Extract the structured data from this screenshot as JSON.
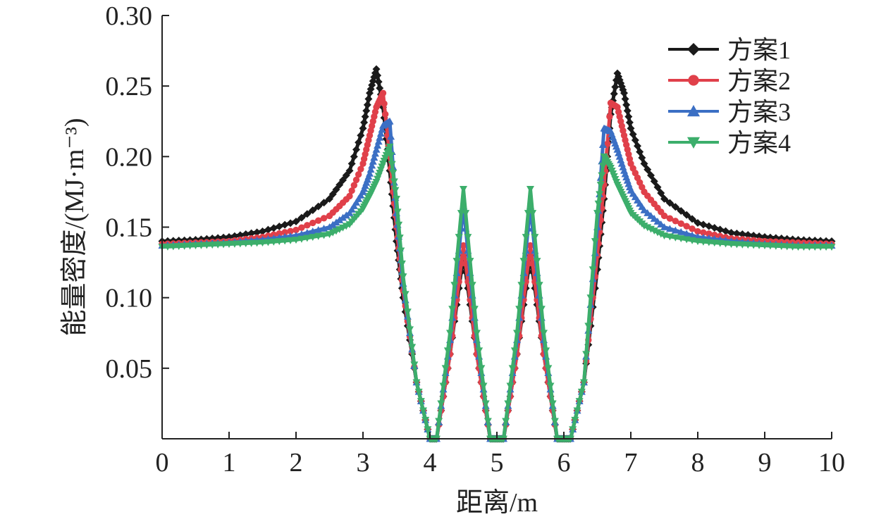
{
  "chart_data": {
    "type": "line",
    "xlabel": "距离/m",
    "ylabel": "能量密度/(MJ·m⁻³)",
    "xlim": [
      0,
      10
    ],
    "ylim": [
      0,
      0.3
    ],
    "x_ticks": [
      "0",
      "1",
      "2",
      "3",
      "4",
      "5",
      "6",
      "7",
      "8",
      "9",
      "10"
    ],
    "y_ticks": [
      "0.05",
      "0.10",
      "0.15",
      "0.20",
      "0.25",
      "0.30"
    ],
    "grid": false,
    "legend_position": "top-right",
    "x": [
      0,
      0.5,
      1.0,
      1.5,
      2.0,
      2.5,
      2.8,
      3.0,
      3.1,
      3.2,
      3.3,
      3.4,
      3.5,
      3.6,
      3.8,
      4.0,
      4.1,
      4.3,
      4.5,
      4.7,
      4.9,
      5.0,
      5.1,
      5.3,
      5.5,
      5.7,
      5.9,
      6.0,
      6.1,
      6.3,
      6.5,
      6.6,
      6.7,
      6.8,
      6.9,
      7.0,
      7.2,
      7.5,
      8.0,
      8.5,
      9.0,
      9.5,
      10.0
    ],
    "series": [
      {
        "name": "方案1",
        "color": "#1a1a1a",
        "marker": "diamond",
        "values": [
          0.14,
          0.141,
          0.143,
          0.147,
          0.154,
          0.17,
          0.19,
          0.22,
          0.245,
          0.262,
          0.235,
          0.19,
          0.14,
          0.1,
          0.04,
          0.0,
          0.0,
          0.06,
          0.13,
          0.06,
          0.0,
          0.0,
          0.0,
          0.06,
          0.13,
          0.06,
          0.0,
          0.0,
          0.0,
          0.04,
          0.12,
          0.17,
          0.23,
          0.259,
          0.245,
          0.22,
          0.195,
          0.17,
          0.153,
          0.146,
          0.143,
          0.141,
          0.14
        ]
      },
      {
        "name": "方案2",
        "color": "#e0404a",
        "marker": "circle",
        "values": [
          0.138,
          0.139,
          0.14,
          0.143,
          0.148,
          0.158,
          0.172,
          0.195,
          0.215,
          0.235,
          0.245,
          0.2,
          0.15,
          0.105,
          0.04,
          0.0,
          0.0,
          0.06,
          0.137,
          0.06,
          0.0,
          0.0,
          0.0,
          0.06,
          0.137,
          0.06,
          0.0,
          0.0,
          0.0,
          0.04,
          0.13,
          0.18,
          0.238,
          0.235,
          0.215,
          0.195,
          0.175,
          0.158,
          0.147,
          0.142,
          0.14,
          0.139,
          0.138
        ]
      },
      {
        "name": "方案3",
        "color": "#3b6fc4",
        "marker": "triangle-up",
        "values": [
          0.137,
          0.138,
          0.139,
          0.141,
          0.144,
          0.15,
          0.16,
          0.175,
          0.188,
          0.205,
          0.222,
          0.225,
          0.16,
          0.11,
          0.04,
          0.0,
          0.0,
          0.07,
          0.165,
          0.07,
          0.0,
          0.0,
          0.0,
          0.07,
          0.165,
          0.07,
          0.0,
          0.0,
          0.0,
          0.04,
          0.15,
          0.22,
          0.218,
          0.205,
          0.19,
          0.176,
          0.162,
          0.15,
          0.143,
          0.14,
          0.138,
          0.137,
          0.137
        ]
      },
      {
        "name": "方案4",
        "color": "#3cae6b",
        "marker": "triangle-down",
        "values": [
          0.136,
          0.137,
          0.138,
          0.139,
          0.141,
          0.145,
          0.152,
          0.163,
          0.172,
          0.182,
          0.195,
          0.207,
          0.17,
          0.115,
          0.04,
          0.0,
          0.0,
          0.075,
          0.177,
          0.075,
          0.0,
          0.0,
          0.0,
          0.075,
          0.177,
          0.075,
          0.0,
          0.0,
          0.0,
          0.04,
          0.16,
          0.2,
          0.192,
          0.18,
          0.17,
          0.16,
          0.151,
          0.144,
          0.14,
          0.138,
          0.137,
          0.136,
          0.136
        ]
      }
    ]
  }
}
